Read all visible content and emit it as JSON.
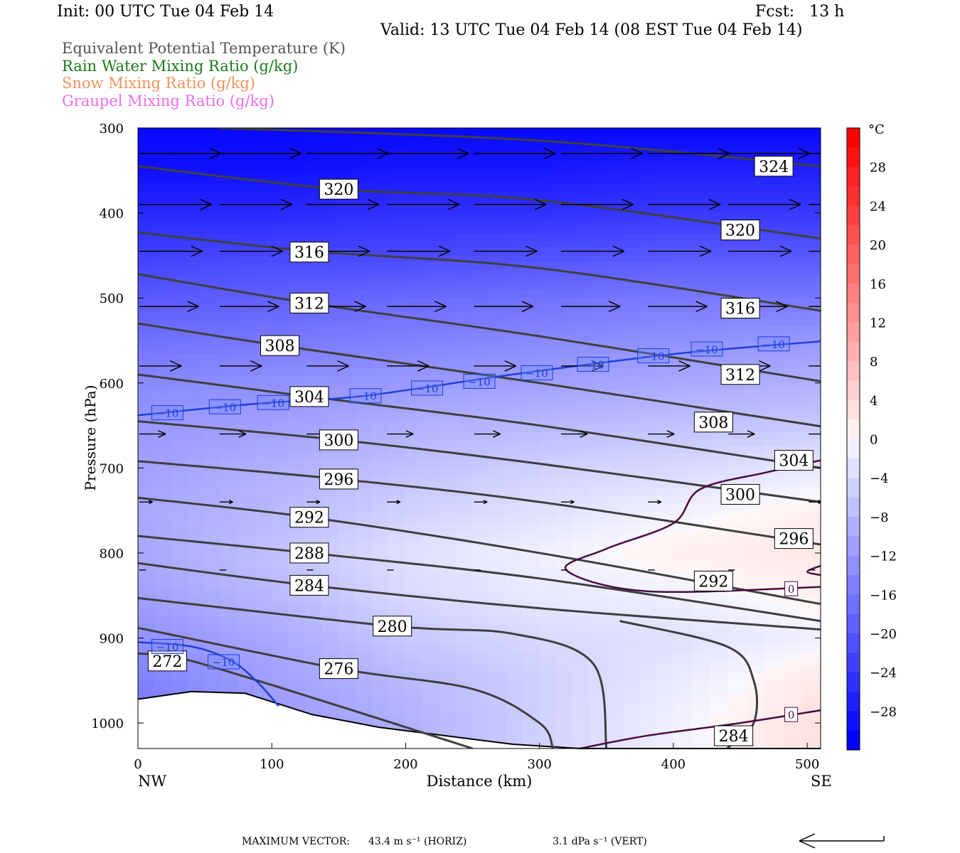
{
  "header": {
    "init": "Init: 00 UTC Tue 04 Feb 14",
    "fcst": "Fcst:   13 h",
    "valid": "Valid: 13 UTC Tue 04 Feb 14 (08 EST Tue 04 Feb 14)"
  },
  "legend": [
    {
      "label": "Equivalent Potential Temperature (K)",
      "color": "#555555"
    },
    {
      "label": "Rain Water Mixing Ratio (g/kg)",
      "color": "#1a7a1a"
    },
    {
      "label": "Snow Mixing Ratio (g/kg)",
      "color": "#f0935a"
    },
    {
      "label": "Graupel Mixing Ratio (g/kg)",
      "color": "#ec6cec"
    }
  ],
  "footer": {
    "max_vector_label": "MAXIMUM VECTOR:",
    "horiz": "43.4 m s⁻¹ (HORIZ)",
    "vert": "3.1 dPa s⁻¹ (VERT)"
  },
  "chart_data": {
    "type": "cross-section",
    "xlabel": "Distance (km)",
    "ylabel": "Pressure (hPa)",
    "xlim": [
      0,
      510
    ],
    "ylim": [
      1030,
      300
    ],
    "x_ticks": [
      0,
      100,
      200,
      300,
      400,
      500
    ],
    "y_ticks": [
      300,
      400,
      500,
      600,
      700,
      800,
      900,
      1000
    ],
    "x_end_labels": {
      "left": "NW",
      "right": "SE"
    },
    "colorbar": {
      "unit": "°C",
      "ticks": [
        28,
        24,
        20,
        16,
        12,
        8,
        4,
        0,
        -4,
        -8,
        -12,
        -16,
        -20,
        -24,
        -28
      ],
      "range": [
        -32,
        32
      ]
    },
    "temperature_shading": [
      {
        "p": 300,
        "t": [
          -30,
          -30,
          -30,
          -30,
          -30,
          -30
        ]
      },
      {
        "p": 350,
        "t": [
          -29,
          -29,
          -28,
          -28,
          -27,
          -27
        ]
      },
      {
        "p": 400,
        "t": [
          -26,
          -26,
          -25,
          -25,
          -24,
          -24
        ]
      },
      {
        "p": 450,
        "t": [
          -23,
          -22,
          -22,
          -21,
          -20,
          -20
        ]
      },
      {
        "p": 500,
        "t": [
          -20,
          -19,
          -18,
          -17,
          -16,
          -16
        ]
      },
      {
        "p": 550,
        "t": [
          -17,
          -16,
          -15,
          -14,
          -13,
          -12
        ]
      },
      {
        "p": 600,
        "t": [
          -14,
          -13,
          -12,
          -11,
          -10,
          -9
        ]
      },
      {
        "p": 650,
        "t": [
          -12,
          -11,
          -9,
          -8,
          -7,
          -6
        ]
      },
      {
        "p": 700,
        "t": [
          -11,
          -9,
          -7,
          -5,
          -4,
          -2
        ]
      },
      {
        "p": 750,
        "t": [
          -10,
          -8,
          -5,
          -3,
          -1,
          1
        ]
      },
      {
        "p": 800,
        "t": [
          -10,
          -7,
          -3,
          -1,
          1,
          2
        ]
      },
      {
        "p": 850,
        "t": [
          -11,
          -8,
          -4,
          -2,
          -1,
          1
        ]
      },
      {
        "p": 900,
        "t": [
          -13,
          -10,
          -6,
          -4,
          -3,
          -1
        ]
      },
      {
        "p": 950,
        "t": [
          -15,
          -11,
          -8,
          -5,
          -2,
          2
        ]
      },
      {
        "p": 1000,
        "t": [
          -16,
          -12,
          -9,
          -5,
          -1,
          3
        ]
      }
    ],
    "theta_e_contours": [
      {
        "value": 324,
        "points": [
          [
            60,
            300
          ],
          [
            300,
            315
          ],
          [
            510,
            345
          ]
        ],
        "label_at": [
          475,
          345
        ]
      },
      {
        "value": 320,
        "points": [
          [
            0,
            345
          ],
          [
            150,
            372
          ],
          [
            300,
            385
          ],
          [
            510,
            430
          ]
        ],
        "label_at": [
          150,
          372
        ]
      },
      {
        "value": 320,
        "points": [
          [
            0,
            345
          ],
          [
            150,
            372
          ],
          [
            300,
            385
          ],
          [
            510,
            430
          ]
        ],
        "label_at": [
          450,
          420
        ]
      },
      {
        "value": 316,
        "points": [
          [
            0,
            423
          ],
          [
            130,
            445
          ],
          [
            300,
            465
          ],
          [
            510,
            515
          ]
        ],
        "label_at": [
          128,
          446
        ]
      },
      {
        "value": 316,
        "points": [
          [
            0,
            423
          ],
          [
            130,
            445
          ],
          [
            300,
            465
          ],
          [
            510,
            515
          ]
        ],
        "label_at": [
          450,
          512
        ]
      },
      {
        "value": 312,
        "points": [
          [
            0,
            472
          ],
          [
            128,
            506
          ],
          [
            300,
            545
          ],
          [
            510,
            598
          ]
        ],
        "label_at": [
          128,
          506
        ]
      },
      {
        "value": 312,
        "points": [
          [
            0,
            472
          ],
          [
            128,
            506
          ],
          [
            300,
            545
          ],
          [
            510,
            598
          ]
        ],
        "label_at": [
          450,
          590
        ]
      },
      {
        "value": 308,
        "points": [
          [
            0,
            530
          ],
          [
            106,
            556
          ],
          [
            300,
            600
          ],
          [
            510,
            651
          ]
        ],
        "label_at": [
          106,
          556
        ]
      },
      {
        "value": 308,
        "points": [
          [
            0,
            530
          ],
          [
            106,
            556
          ],
          [
            300,
            600
          ],
          [
            510,
            651
          ]
        ],
        "label_at": [
          430,
          646
        ]
      },
      {
        "value": 304,
        "points": [
          [
            0,
            590
          ],
          [
            128,
            616
          ],
          [
            300,
            650
          ],
          [
            510,
            700
          ]
        ],
        "label_at": [
          128,
          616
        ]
      },
      {
        "value": 304,
        "points": [
          [
            0,
            590
          ],
          [
            128,
            616
          ],
          [
            300,
            650
          ],
          [
            510,
            700
          ]
        ],
        "label_at": [
          490,
          691
        ]
      },
      {
        "value": 300,
        "points": [
          [
            0,
            645
          ],
          [
            150,
            667
          ],
          [
            300,
            695
          ],
          [
            510,
            740
          ]
        ],
        "label_at": [
          150,
          667
        ]
      },
      {
        "value": 300,
        "points": [
          [
            0,
            645
          ],
          [
            150,
            667
          ],
          [
            300,
            695
          ],
          [
            510,
            740
          ]
        ],
        "label_at": [
          450,
          731
        ]
      },
      {
        "value": 296,
        "points": [
          [
            0,
            692
          ],
          [
            150,
            713
          ],
          [
            300,
            740
          ],
          [
            510,
            790
          ]
        ],
        "label_at": [
          150,
          713
        ]
      },
      {
        "value": 296,
        "points": [
          [
            0,
            692
          ],
          [
            150,
            713
          ],
          [
            300,
            740
          ],
          [
            510,
            790
          ]
        ],
        "label_at": [
          490,
          783
        ]
      },
      {
        "value": 292,
        "points": [
          [
            0,
            735
          ],
          [
            128,
            758
          ],
          [
            300,
            800
          ],
          [
            510,
            860
          ]
        ],
        "label_at": [
          128,
          758
        ]
      },
      {
        "value": 292,
        "points": [
          [
            0,
            735
          ],
          [
            128,
            758
          ],
          [
            300,
            800
          ],
          [
            510,
            860
          ]
        ],
        "label_at": [
          430,
          833
        ]
      },
      {
        "value": 288,
        "points": [
          [
            0,
            780
          ],
          [
            128,
            800
          ],
          [
            300,
            830
          ],
          [
            510,
            880
          ]
        ],
        "label_at": [
          128,
          800
        ]
      },
      {
        "value": 284,
        "points": [
          [
            0,
            812
          ],
          [
            128,
            838
          ],
          [
            300,
            865
          ],
          [
            510,
            890
          ]
        ],
        "label_at": [
          128,
          838
        ]
      },
      {
        "value": 280,
        "points": [
          [
            0,
            853
          ],
          [
            190,
            886
          ],
          [
            280,
            895
          ],
          [
            340,
            930
          ],
          [
            350,
            1030
          ]
        ],
        "label_at": [
          190,
          886
        ]
      },
      {
        "value": 276,
        "points": [
          [
            0,
            888
          ],
          [
            150,
            936
          ],
          [
            250,
            960
          ],
          [
            300,
            1000
          ],
          [
            310,
            1030
          ]
        ],
        "label_at": [
          150,
          936
        ]
      },
      {
        "value": 272,
        "points": [
          [
            0,
            918
          ],
          [
            40,
            927
          ],
          [
            150,
            980
          ],
          [
            250,
            1030
          ]
        ],
        "label_at": [
          22,
          927
        ]
      },
      {
        "value": 284,
        "points": [
          [
            440,
            1030
          ],
          [
            460,
            1000
          ],
          [
            460,
            950
          ],
          [
            440,
            910
          ],
          [
            360,
            880
          ]
        ],
        "label_at": [
          445,
          1015
        ]
      }
    ],
    "temperature_contours": [
      {
        "value": -10,
        "points": [
          [
            0,
            638
          ],
          [
            63,
            628
          ],
          [
            100,
            623
          ],
          [
            170,
            615
          ],
          [
            280,
            590
          ],
          [
            400,
            566
          ],
          [
            510,
            551
          ]
        ],
        "labels_at": [
          [
            22,
            635
          ],
          [
            65,
            628
          ],
          [
            101,
            623
          ],
          [
            170,
            615
          ],
          [
            216,
            606
          ],
          [
            255,
            598
          ],
          [
            298,
            588
          ],
          [
            340,
            578
          ],
          [
            385,
            568
          ],
          [
            425,
            560
          ],
          [
            475,
            554
          ]
        ]
      },
      {
        "value": -10,
        "points": [
          [
            0,
            905
          ],
          [
            40,
            910
          ],
          [
            70,
            927
          ],
          [
            90,
            953
          ],
          [
            105,
            980
          ]
        ],
        "labels_at": [
          [
            22,
            910
          ],
          [
            64,
            928
          ]
        ]
      }
    ],
    "zero_c_contour": [
      {
        "value": 0,
        "points": [
          [
            510,
            691
          ],
          [
            470,
            705
          ],
          [
            420,
            725
          ],
          [
            400,
            765
          ],
          [
            350,
            795
          ],
          [
            320,
            820
          ],
          [
            380,
            845
          ],
          [
            510,
            840
          ]
        ],
        "labels_at": [
          [
            488,
            842
          ]
        ]
      },
      {
        "value": 0,
        "points": [
          [
            510,
            815
          ],
          [
            500,
            822
          ],
          [
            510,
            826
          ]
        ]
      },
      {
        "value": 0,
        "points": [
          [
            330,
            1030
          ],
          [
            380,
            1015
          ],
          [
            450,
            1000
          ],
          [
            510,
            985
          ]
        ],
        "labels_at": [
          [
            488,
            990
          ]
        ]
      }
    ],
    "terrain": [
      [
        0,
        972
      ],
      [
        40,
        963
      ],
      [
        80,
        965
      ],
      [
        100,
        975
      ],
      [
        130,
        990
      ],
      [
        180,
        1005
      ],
      [
        240,
        1017
      ],
      [
        280,
        1025
      ],
      [
        330,
        1030
      ],
      [
        510,
        1030
      ]
    ],
    "wind_vectors": [
      {
        "p": 330,
        "u": [
          62,
          62,
          62,
          62,
          62,
          62,
          62,
          62,
          62
        ]
      },
      {
        "p": 390,
        "u": [
          55,
          55,
          55,
          55,
          55,
          55,
          55,
          55,
          55
        ]
      },
      {
        "p": 445,
        "u": [
          48,
          48,
          48,
          48,
          48,
          48,
          48,
          48,
          48
        ]
      },
      {
        "p": 510,
        "u": [
          45,
          45,
          45,
          45,
          45,
          45,
          45,
          45,
          45
        ]
      },
      {
        "p": 580,
        "u": [
          32,
          32,
          32,
          32,
          32,
          32,
          32,
          32,
          32
        ]
      },
      {
        "p": 660,
        "u": [
          20,
          20,
          20,
          20,
          20,
          20,
          20,
          20,
          20
        ]
      },
      {
        "p": 740,
        "u": [
          10,
          10,
          10,
          10,
          10,
          10,
          10,
          10,
          10
        ]
      },
      {
        "p": 820,
        "u": [
          5,
          5,
          5,
          5,
          5,
          5,
          5,
          5,
          5
        ]
      }
    ]
  }
}
